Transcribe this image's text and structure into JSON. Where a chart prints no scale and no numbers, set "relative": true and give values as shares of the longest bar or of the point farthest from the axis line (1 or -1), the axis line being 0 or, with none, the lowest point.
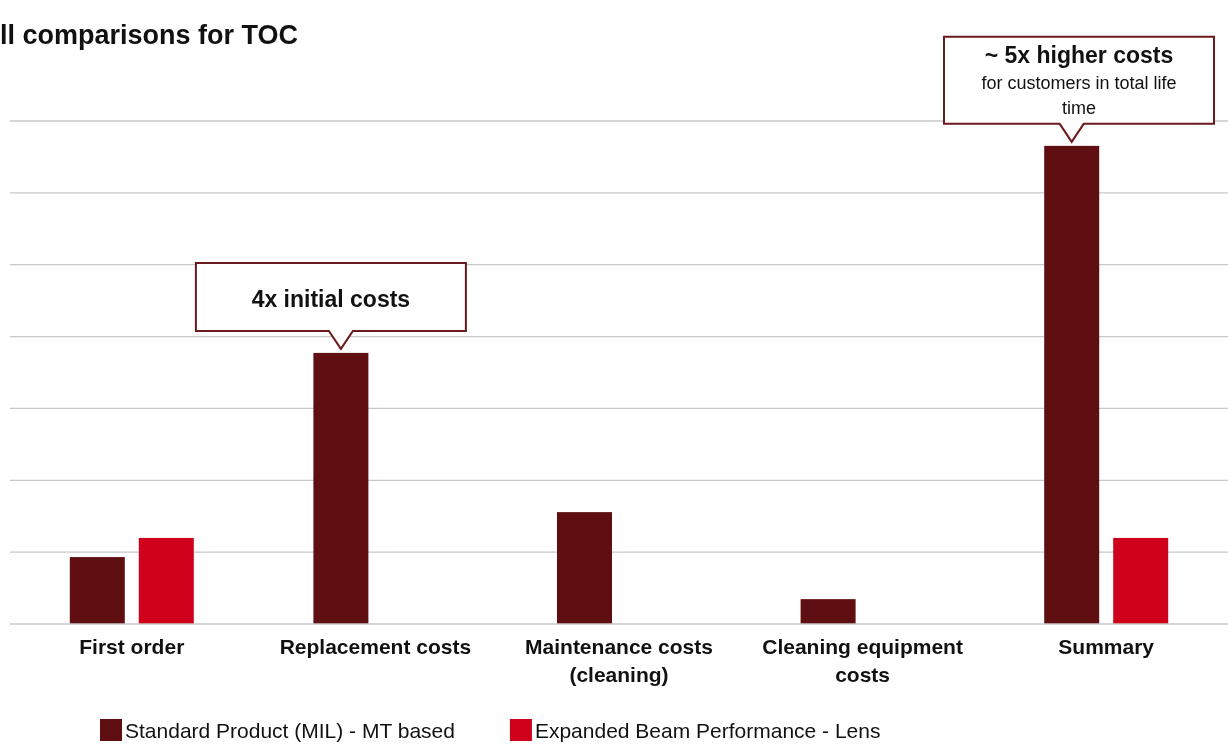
{
  "chart_data": {
    "type": "bar",
    "relative": true,
    "title": "ll comparisons for TOC",
    "categories": [
      "First order",
      "Replacement costs",
      "Maintenance costs (cleaning)",
      "Cleaning equipment costs",
      "Summary"
    ],
    "series": [
      {
        "name": "Standard Product (MIL) - MT based",
        "color": "#5f0f12",
        "values": [
          0.14,
          0.567,
          0.234,
          0.052,
          1
        ]
      },
      {
        "name": "Expanded Beam Performance - Lens",
        "color": "#d0021b",
        "values": [
          0.18,
          null,
          null,
          null,
          0.18
        ]
      }
    ],
    "annotations": [
      "4x initial costs",
      "~ 5x higher costs",
      "for customers in total life time"
    ],
    "grid": true,
    "legend": "bottom"
  }
}
